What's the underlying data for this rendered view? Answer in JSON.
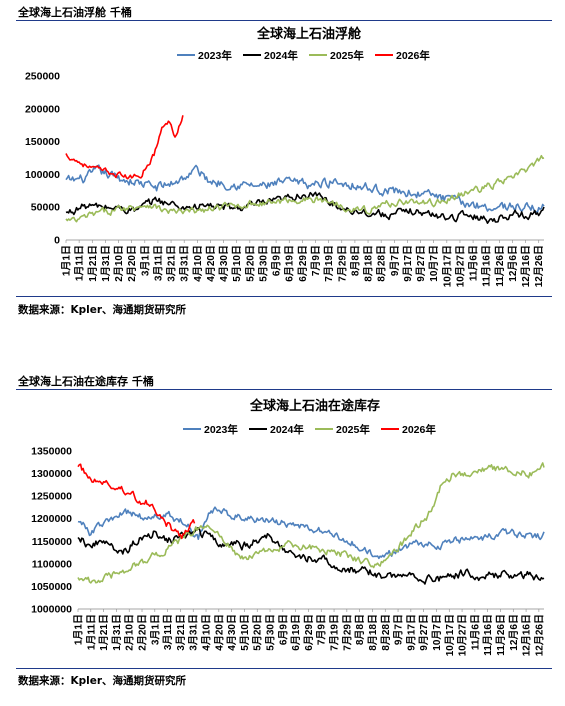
{
  "panels": [
    {
      "header": "全球海上石油浮舱  千桶",
      "source": "数据来源：Kpler、海通期货研究所"
    },
    {
      "header": "全球海上石油在途库存  千桶",
      "source": "数据来源：Kpler、海通期货研究所"
    }
  ],
  "x_tick_labels": [
    "1月1日",
    "1月11日",
    "1月21日",
    "1月31日",
    "2月10日",
    "2月20日",
    "3月1日",
    "3月11日",
    "3月21日",
    "3月31日",
    "4月10日",
    "4月20日",
    "4月30日",
    "5月10日",
    "5月20日",
    "5月30日",
    "6月9日",
    "6月19日",
    "6月29日",
    "7月9日",
    "7月19日",
    "7月29日",
    "8月8日",
    "8月18日",
    "8月28日",
    "9月7日",
    "9月17日",
    "9月27日",
    "10月7日",
    "10月17日",
    "10月27日",
    "11月6日",
    "11月16日",
    "11月26日",
    "12月6日",
    "12月16日",
    "12月26日"
  ],
  "chart_data": [
    {
      "type": "line",
      "title": "全球海上石油浮舱",
      "xlabel": "",
      "ylabel": "",
      "ylim": [
        0,
        250000
      ],
      "yticks": [
        0,
        50000,
        100000,
        150000,
        200000,
        250000
      ],
      "xlim_day": [
        1,
        365
      ],
      "legend_position": "top",
      "grid": false,
      "series": [
        {
          "name": "2023年",
          "color": "#4f81bd",
          "noise": 6000,
          "points": [
            [
              1,
              90000
            ],
            [
              15,
              93000
            ],
            [
              25,
              105000
            ],
            [
              40,
              95000
            ],
            [
              55,
              88000
            ],
            [
              70,
              80000
            ],
            [
              80,
              85000
            ],
            [
              95,
              100000
            ],
            [
              100,
              108000
            ],
            [
              110,
              90000
            ],
            [
              130,
              85000
            ],
            [
              150,
              82000
            ],
            [
              170,
              88000
            ],
            [
              190,
              84000
            ],
            [
              205,
              90000
            ],
            [
              220,
              85000
            ],
            [
              235,
              78000
            ],
            [
              250,
              75000
            ],
            [
              265,
              72000
            ],
            [
              280,
              68000
            ],
            [
              295,
              60000
            ],
            [
              310,
              55000
            ],
            [
              325,
              50000
            ],
            [
              340,
              52000
            ],
            [
              355,
              48000
            ],
            [
              365,
              50000
            ]
          ]
        },
        {
          "name": "2024年",
          "color": "#000000",
          "noise": 5000,
          "points": [
            [
              1,
              40000
            ],
            [
              15,
              52000
            ],
            [
              30,
              50000
            ],
            [
              45,
              48000
            ],
            [
              55,
              45000
            ],
            [
              70,
              62000
            ],
            [
              80,
              55000
            ],
            [
              90,
              50000
            ],
            [
              110,
              52000
            ],
            [
              130,
              48000
            ],
            [
              150,
              55000
            ],
            [
              165,
              60000
            ],
            [
              180,
              70000
            ],
            [
              195,
              65000
            ],
            [
              210,
              50000
            ],
            [
              230,
              42000
            ],
            [
              250,
              38000
            ],
            [
              265,
              45000
            ],
            [
              275,
              40000
            ],
            [
              290,
              35000
            ],
            [
              310,
              38000
            ],
            [
              325,
              30000
            ],
            [
              340,
              40000
            ],
            [
              355,
              38000
            ],
            [
              365,
              45000
            ]
          ]
        },
        {
          "name": "2025年",
          "color": "#9bbb59",
          "noise": 4500,
          "points": [
            [
              1,
              30000
            ],
            [
              8,
              28000
            ],
            [
              20,
              38000
            ],
            [
              35,
              45000
            ],
            [
              50,
              50000
            ],
            [
              65,
              55000
            ],
            [
              75,
              45000
            ],
            [
              90,
              42000
            ],
            [
              105,
              45000
            ],
            [
              120,
              50000
            ],
            [
              140,
              55000
            ],
            [
              160,
              58000
            ],
            [
              180,
              62000
            ],
            [
              200,
              60000
            ],
            [
              215,
              50000
            ],
            [
              230,
              45000
            ],
            [
              245,
              55000
            ],
            [
              260,
              60000
            ],
            [
              275,
              55000
            ],
            [
              290,
              60000
            ],
            [
              305,
              72000
            ],
            [
              320,
              80000
            ],
            [
              335,
              90000
            ],
            [
              350,
              105000
            ],
            [
              365,
              125000
            ]
          ]
        },
        {
          "name": "2026年",
          "color": "#ff0000",
          "noise": 3500,
          "points": [
            [
              1,
              130000
            ],
            [
              10,
              120000
            ],
            [
              20,
              110000
            ],
            [
              30,
              105000
            ],
            [
              40,
              100000
            ],
            [
              50,
              95000
            ],
            [
              58,
              100000
            ],
            [
              62,
              112000
            ],
            [
              68,
              130000
            ],
            [
              74,
              170000
            ],
            [
              80,
              180000
            ],
            [
              84,
              160000
            ],
            [
              90,
              190000
            ]
          ]
        }
      ]
    },
    {
      "type": "line",
      "title": "全球海上石油在途库存",
      "xlabel": "",
      "ylabel": "",
      "ylim": [
        1000000,
        1350000
      ],
      "yticks": [
        1000000,
        1050000,
        1100000,
        1150000,
        1200000,
        1250000,
        1300000,
        1350000
      ],
      "xlim_day": [
        1,
        365
      ],
      "legend_position": "top",
      "grid": false,
      "series": [
        {
          "name": "2023年",
          "color": "#4f81bd",
          "noise": 7000,
          "points": [
            [
              1,
              1200000
            ],
            [
              10,
              1170000
            ],
            [
              25,
              1195000
            ],
            [
              40,
              1215000
            ],
            [
              55,
              1200000
            ],
            [
              70,
              1210000
            ],
            [
              85,
              1190000
            ],
            [
              95,
              1160000
            ],
            [
              105,
              1220000
            ],
            [
              120,
              1210000
            ],
            [
              140,
              1200000
            ],
            [
              160,
              1190000
            ],
            [
              180,
              1180000
            ],
            [
              200,
              1165000
            ],
            [
              220,
              1140000
            ],
            [
              235,
              1110000
            ],
            [
              250,
              1130000
            ],
            [
              265,
              1150000
            ],
            [
              280,
              1140000
            ],
            [
              295,
              1150000
            ],
            [
              310,
              1155000
            ],
            [
              325,
              1160000
            ],
            [
              340,
              1170000
            ],
            [
              350,
              1160000
            ],
            [
              365,
              1165000
            ]
          ]
        },
        {
          "name": "2024年",
          "color": "#000000",
          "noise": 8000,
          "points": [
            [
              1,
              1165000
            ],
            [
              10,
              1140000
            ],
            [
              20,
              1150000
            ],
            [
              35,
              1120000
            ],
            [
              50,
              1160000
            ],
            [
              60,
              1170000
            ],
            [
              70,
              1150000
            ],
            [
              80,
              1160000
            ],
            [
              95,
              1170000
            ],
            [
              110,
              1150000
            ],
            [
              130,
              1140000
            ],
            [
              150,
              1160000
            ],
            [
              170,
              1120000
            ],
            [
              190,
              1110000
            ],
            [
              210,
              1090000
            ],
            [
              230,
              1080000
            ],
            [
              245,
              1070000
            ],
            [
              260,
              1080000
            ],
            [
              275,
              1065000
            ],
            [
              290,
              1070000
            ],
            [
              305,
              1080000
            ],
            [
              320,
              1070000
            ],
            [
              335,
              1080000
            ],
            [
              350,
              1075000
            ],
            [
              365,
              1070000
            ]
          ]
        },
        {
          "name": "2025年",
          "color": "#9bbb59",
          "noise": 7000,
          "points": [
            [
              1,
              1075000
            ],
            [
              10,
              1060000
            ],
            [
              25,
              1070000
            ],
            [
              40,
              1090000
            ],
            [
              55,
              1110000
            ],
            [
              70,
              1130000
            ],
            [
              85,
              1160000
            ],
            [
              100,
              1190000
            ],
            [
              115,
              1150000
            ],
            [
              130,
              1110000
            ],
            [
              145,
              1125000
            ],
            [
              165,
              1140000
            ],
            [
              185,
              1135000
            ],
            [
              205,
              1125000
            ],
            [
              220,
              1110000
            ],
            [
              235,
              1100000
            ],
            [
              250,
              1130000
            ],
            [
              265,
              1180000
            ],
            [
              278,
              1220000
            ],
            [
              285,
              1280000
            ],
            [
              295,
              1300000
            ],
            [
              310,
              1305000
            ],
            [
              325,
              1310000
            ],
            [
              340,
              1305000
            ],
            [
              355,
              1300000
            ],
            [
              365,
              1315000
            ]
          ]
        },
        {
          "name": "2026年",
          "color": "#ff0000",
          "noise": 7000,
          "points": [
            [
              1,
              1320000
            ],
            [
              10,
              1290000
            ],
            [
              20,
              1280000
            ],
            [
              30,
              1270000
            ],
            [
              40,
              1260000
            ],
            [
              50,
              1240000
            ],
            [
              60,
              1230000
            ],
            [
              68,
              1200000
            ],
            [
              76,
              1170000
            ],
            [
              82,
              1160000
            ],
            [
              88,
              1180000
            ],
            [
              92,
              1190000
            ]
          ]
        }
      ]
    }
  ]
}
